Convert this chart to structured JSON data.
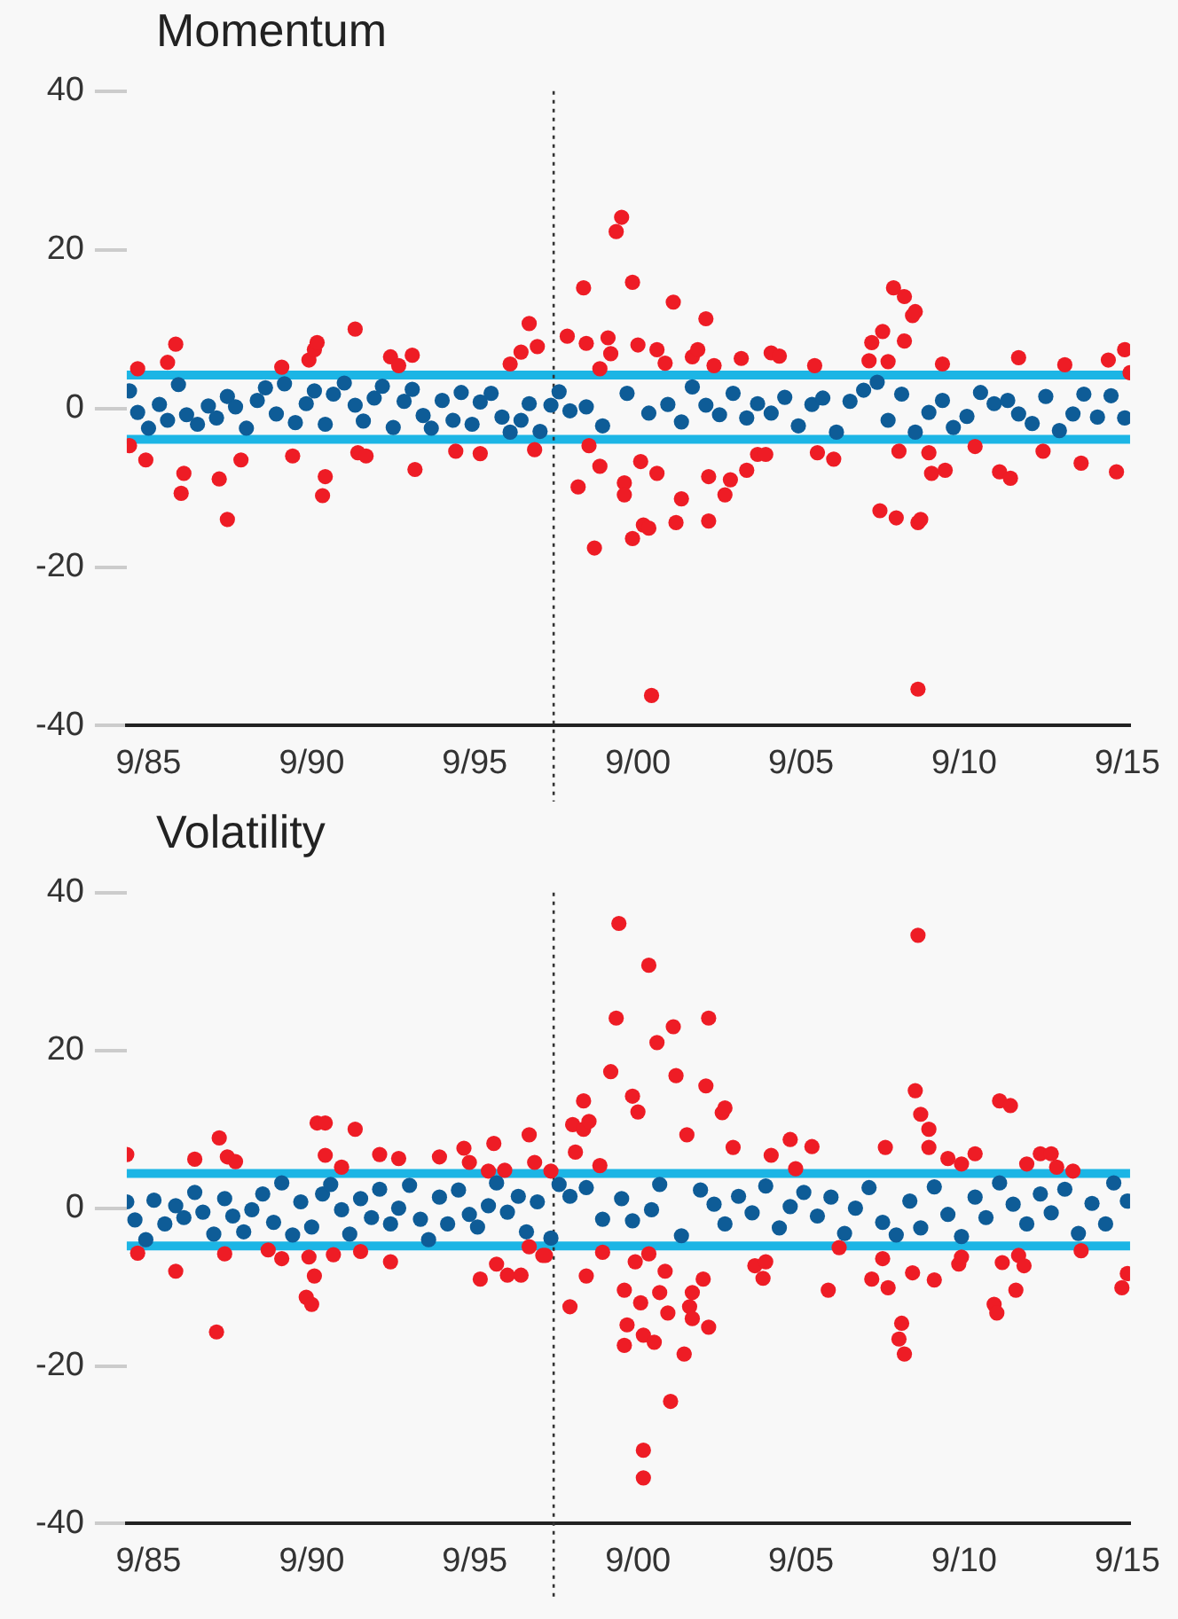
{
  "chart_data": [
    {
      "type": "scatter",
      "title": "Momentum",
      "marker": "circle",
      "legend": false,
      "grid": false,
      "xlim": [
        "1985-01",
        "2015-10"
      ],
      "ylim": [
        -40,
        40
      ],
      "yticks": [
        40,
        20,
        0,
        -20,
        -40
      ],
      "xticks": [
        {
          "value": "1985-09",
          "label": "9/85"
        },
        {
          "value": "1990-09",
          "label": "9/90"
        },
        {
          "value": "1995-09",
          "label": "9/95"
        },
        {
          "value": "2000-09",
          "label": "9/00"
        },
        {
          "value": "2005-09",
          "label": "9/05"
        },
        {
          "value": "2010-09",
          "label": "9/10"
        },
        {
          "value": "2015-09",
          "label": "9/15"
        }
      ],
      "ref_lines": [
        {
          "axis": "y",
          "value": 4.2,
          "color": "#1cb5e5",
          "line_style": "solid"
        },
        {
          "axis": "y",
          "value": -3.9,
          "color": "#1cb5e5",
          "line_style": "solid"
        },
        {
          "axis": "x",
          "value": "1998-02",
          "color": "#333333",
          "line_style": "dotted"
        }
      ],
      "series": [
        {
          "color": "#0e5c97",
          "x": [
            "1985-02",
            "1985-05",
            "1985-09",
            "1986-01",
            "1986-04",
            "1986-08",
            "1986-11",
            "1987-03",
            "1987-07",
            "1987-10",
            "1988-02",
            "1988-05",
            "1988-09",
            "1989-01",
            "1989-04",
            "1989-08",
            "1989-11",
            "1990-03",
            "1990-07",
            "1990-10",
            "1991-02",
            "1991-05",
            "1991-09",
            "1992-01",
            "1992-04",
            "1992-08",
            "1992-11",
            "1993-03",
            "1993-07",
            "1993-10",
            "1994-02",
            "1994-05",
            "1994-09",
            "1995-01",
            "1995-04",
            "1995-08",
            "1995-11",
            "1996-03",
            "1996-07",
            "1996-10",
            "1997-02",
            "1997-05",
            "1997-09",
            "1998-01",
            "1998-04",
            "1998-08",
            "1999-02",
            "1999-08",
            "2000-05",
            "2001-01",
            "2001-08",
            "2002-01",
            "2002-05",
            "2002-10",
            "2003-03",
            "2003-08",
            "2004-01",
            "2004-05",
            "2004-10",
            "2005-03",
            "2005-08",
            "2006-01",
            "2006-05",
            "2006-10",
            "2007-03",
            "2007-08",
            "2008-01",
            "2008-05",
            "2008-10",
            "2009-03",
            "2009-08",
            "2010-01",
            "2010-05",
            "2010-10",
            "2011-03",
            "2011-08",
            "2012-01",
            "2012-05",
            "2012-10",
            "2013-03",
            "2013-08",
            "2014-01",
            "2014-05",
            "2014-10",
            "2015-03",
            "2015-08"
          ],
          "values": [
            2.2,
            -0.5,
            -2.5,
            0.5,
            -1.5,
            3.0,
            -0.8,
            -2.0,
            0.3,
            -1.2,
            1.5,
            0.2,
            -2.5,
            1.0,
            2.6,
            -0.7,
            3.1,
            -1.8,
            0.6,
            2.2,
            -2.0,
            1.8,
            3.2,
            0.4,
            -1.6,
            1.3,
            2.8,
            -2.4,
            0.9,
            2.4,
            -0.9,
            -2.5,
            1.0,
            -1.5,
            2.0,
            -2.0,
            0.8,
            1.9,
            -1.1,
            -3.0,
            -1.5,
            0.6,
            -2.9,
            0.4,
            2.1,
            -0.3,
            0.2,
            -2.2,
            1.9,
            -0.6,
            0.5,
            -1.7,
            2.7,
            0.4,
            -0.8,
            1.9,
            -1.2,
            0.6,
            -0.6,
            1.4,
            -2.2,
            0.5,
            1.3,
            -3.0,
            0.9,
            2.3,
            3.3,
            -1.5,
            1.8,
            -3.0,
            -0.5,
            1.0,
            -2.4,
            -1.0,
            2.0,
            0.6,
            1.0,
            -0.7,
            -1.9,
            1.5,
            -2.8,
            -0.7,
            1.8,
            -1.1,
            1.6,
            -1.2
          ]
        },
        {
          "color": "#ee1c25",
          "x": [
            "1985-02",
            "1985-08",
            "1985-05",
            "1986-04",
            "1986-07",
            "1986-10",
            "1986-09",
            "1987-11",
            "1988-02",
            "1988-07",
            "1989-10",
            "1990-02",
            "1990-08",
            "1990-10",
            "1990-11",
            "1991-01",
            "1991-02",
            "1992-01",
            "1992-02",
            "1992-05",
            "1993-02",
            "1993-05",
            "1993-10",
            "1993-11",
            "1995-02",
            "1995-11",
            "1996-10",
            "1997-02",
            "1997-05",
            "1997-08",
            "1997-07",
            "1998-07",
            "1999-01",
            "1999-02",
            "1999-10",
            "1999-11",
            "1999-07",
            "1999-03",
            "1999-07",
            "1998-11",
            "1999-05",
            "2000-03",
            "2000-01",
            "2000-07",
            "2001-10",
            "2002-10",
            "2000-09",
            "2001-04",
            "2001-07",
            "2002-05",
            "2002-07",
            "2003-01",
            "2003-11",
            "2004-10",
            "2005-01",
            "2006-02",
            "2007-10",
            "2007-11",
            "2008-03",
            "2008-07",
            "2008-11",
            "2009-02",
            "2009-03",
            "2008-11",
            "2008-05",
            "2010-01",
            "2012-05",
            "2013-10",
            "2015-02",
            "2015-08",
            "2015-10",
            "2000-04",
            "2000-04",
            "2000-10",
            "2000-11",
            "2001-01",
            "2000-07",
            "2001-02",
            "2001-04",
            "2002-01",
            "2001-11",
            "2002-11",
            "2002-11",
            "2003-05",
            "2003-07",
            "2004-01",
            "2004-05",
            "2004-08",
            "2006-03",
            "2006-09",
            "2008-02",
            "2008-08",
            "2009-04",
            "2009-05",
            "2009-04",
            "2008-09",
            "2009-08",
            "2009-09",
            "2010-02",
            "2011-10",
            "2012-02",
            "2011-01",
            "2013-02",
            "2014-04",
            "2015-05"
          ],
          "values": [
            -4.7,
            -6.5,
            5,
            5.8,
            8.1,
            -8.2,
            -10.7,
            -8.9,
            -14,
            -6.5,
            5.2,
            -6,
            6.1,
            7.4,
            8.3,
            -11,
            -8.6,
            10,
            -5.6,
            -6,
            6.5,
            5.4,
            6.7,
            -7.7,
            -5.4,
            -5.7,
            5.6,
            7.1,
            10.7,
            7.8,
            -5.2,
            9.1,
            15.2,
            8.2,
            8.9,
            6.9,
            5,
            -4.7,
            -7.3,
            -9.9,
            -17.6,
            24.1,
            22.3,
            15.9,
            13.4,
            11.3,
            8,
            7.4,
            5.7,
            6.5,
            7.4,
            5.4,
            6.3,
            7,
            6.6,
            5.4,
            6,
            8.3,
            9.7,
            15.2,
            14.1,
            11.7,
            12.2,
            8.5,
            5.9,
            5.6,
            6.4,
            5.5,
            6.1,
            7.4,
            4.5,
            -9.4,
            -10.9,
            -6.7,
            -14.7,
            -15.1,
            -16.4,
            -36.2,
            -8.2,
            -11.4,
            -14.4,
            -8.6,
            -14.2,
            -10.9,
            -9,
            -7.8,
            -5.8,
            -5.8,
            -5.6,
            -6.4,
            -12.9,
            -13.8,
            -14.4,
            -14,
            -35.4,
            -5.4,
            -5.6,
            -8.2,
            -7.8,
            -8,
            -8.8,
            -4.8,
            -5.4,
            -6.9,
            -8
          ]
        }
      ]
    },
    {
      "type": "scatter",
      "title": "Volatility",
      "marker": "circle",
      "legend": false,
      "grid": false,
      "xlim": [
        "1985-01",
        "2015-10"
      ],
      "ylim": [
        -40,
        40
      ],
      "yticks": [
        40,
        20,
        0,
        -20,
        -40
      ],
      "xticks": [
        {
          "value": "1985-09",
          "label": "9/85"
        },
        {
          "value": "1990-09",
          "label": "9/90"
        },
        {
          "value": "1995-09",
          "label": "9/95"
        },
        {
          "value": "2000-09",
          "label": "9/00"
        },
        {
          "value": "2005-09",
          "label": "9/05"
        },
        {
          "value": "2010-09",
          "label": "9/10"
        },
        {
          "value": "2015-09",
          "label": "9/15"
        }
      ],
      "ref_lines": [
        {
          "axis": "y",
          "value": 4.4,
          "color": "#1cb5e5",
          "line_style": "solid"
        },
        {
          "axis": "y",
          "value": -4.8,
          "color": "#1cb5e5",
          "line_style": "solid"
        },
        {
          "axis": "x",
          "value": "1998-02",
          "color": "#333333",
          "line_style": "dotted"
        }
      ],
      "series": [
        {
          "color": "#0e5c97",
          "x": [
            "1985-01",
            "1985-04",
            "1985-08",
            "1985-11",
            "1986-03",
            "1986-07",
            "1986-10",
            "1987-02",
            "1987-05",
            "1987-09",
            "1988-01",
            "1988-04",
            "1988-08",
            "1988-11",
            "1989-03",
            "1989-07",
            "1989-10",
            "1990-02",
            "1990-05",
            "1990-09",
            "1991-01",
            "1991-04",
            "1991-08",
            "1991-11",
            "1992-03",
            "1992-07",
            "1992-10",
            "1993-02",
            "1993-05",
            "1993-09",
            "1994-01",
            "1994-04",
            "1994-08",
            "1994-11",
            "1995-03",
            "1995-07",
            "1995-10",
            "1996-02",
            "1996-05",
            "1996-09",
            "1997-01",
            "1997-04",
            "1997-08",
            "1998-01",
            "1998-04",
            "1998-08",
            "1999-02",
            "1999-08",
            "2000-03",
            "2000-07",
            "2001-02",
            "2001-05",
            "2002-01",
            "2002-08",
            "2003-01",
            "2003-05",
            "2003-10",
            "2004-03",
            "2004-08",
            "2005-01",
            "2005-05",
            "2005-10",
            "2006-03",
            "2006-08",
            "2007-01",
            "2007-05",
            "2007-10",
            "2008-03",
            "2008-08",
            "2009-01",
            "2009-05",
            "2009-10",
            "2010-03",
            "2010-08",
            "2011-01",
            "2011-05",
            "2011-10",
            "2012-03",
            "2012-08",
            "2013-01",
            "2013-05",
            "2013-10",
            "2014-03",
            "2014-08",
            "2015-01",
            "2015-04",
            "2015-09"
          ],
          "values": [
            0.8,
            -1.5,
            -4.0,
            1.0,
            -2.0,
            0.3,
            -1.2,
            2.0,
            -0.5,
            -3.3,
            1.2,
            -1.0,
            -3.0,
            -0.2,
            1.8,
            -1.8,
            3.2,
            -3.4,
            0.8,
            -2.4,
            1.8,
            3.0,
            -0.2,
            -3.3,
            1.2,
            -1.2,
            2.4,
            -2.0,
            0.0,
            2.9,
            -1.4,
            -4.0,
            1.4,
            -2.0,
            2.3,
            -0.8,
            -2.4,
            0.3,
            3.2,
            -0.5,
            1.5,
            -3.0,
            0.8,
            -3.8,
            3.0,
            1.5,
            2.6,
            -1.4,
            1.2,
            -1.6,
            -0.2,
            3.0,
            -3.5,
            2.3,
            0.5,
            -2.0,
            1.5,
            -0.6,
            2.8,
            -2.5,
            0.2,
            2.0,
            -1.0,
            1.4,
            -3.2,
            0.0,
            2.6,
            -1.8,
            -3.4,
            0.9,
            -2.5,
            2.7,
            -0.8,
            -3.6,
            1.4,
            -1.2,
            3.2,
            0.5,
            -2.0,
            1.8,
            -0.6,
            2.4,
            -3.2,
            0.6,
            -2.0,
            3.2,
            0.9
          ]
        },
        {
          "color": "#ee1c25",
          "x": [
            "1985-01",
            "1985-05",
            "1986-07",
            "1987-02",
            "1987-11",
            "1988-02",
            "1988-05",
            "1987-10",
            "1988-01",
            "1989-05",
            "1989-10",
            "1990-11",
            "1991-02",
            "1991-02",
            "1990-08",
            "1990-10",
            "1990-07",
            "1990-09",
            "1992-01",
            "1991-08",
            "1991-05",
            "1992-03",
            "1992-10",
            "1993-05",
            "1993-02",
            "1994-08",
            "1995-05",
            "1995-07",
            "1996-04",
            "1996-02",
            "1996-08",
            "1997-05",
            "1997-07",
            "1995-11",
            "1996-05",
            "1996-09",
            "1997-02",
            "1997-05",
            "1997-10",
            "1998-01",
            "1997-11",
            "1998-08",
            "1998-09",
            "1999-01",
            "1999-03",
            "1999-01",
            "1998-10",
            "1999-07",
            "1999-02",
            "1999-08",
            "1999-11",
            "2000-01",
            "2000-02",
            "2000-07",
            "2000-09",
            "2001-01",
            "2001-04",
            "2001-10",
            "2001-11",
            "2002-11",
            "2002-10",
            "2003-04",
            "2003-05",
            "2002-03",
            "2003-08",
            "2004-10",
            "2005-05",
            "2006-01",
            "2005-07",
            "2008-04",
            "2009-03",
            "2009-05",
            "2009-08",
            "2009-08",
            "2009-04",
            "2010-03",
            "2010-08",
            "2011-01",
            "2011-10",
            "2012-02",
            "2012-08",
            "2013-01",
            "2013-05",
            "2013-07",
            "2014-01",
            "2000-04",
            "2000-05",
            "2000-04",
            "2000-08",
            "2000-10",
            "2000-11",
            "2000-11",
            "2000-11",
            "2001-01",
            "2001-03",
            "2001-05",
            "2001-07",
            "2001-08",
            "2001-09",
            "2002-02",
            "2002-04",
            "2002-05",
            "2002-05",
            "2002-09",
            "2002-11",
            "2004-04",
            "2004-07",
            "2004-08",
            "2006-07",
            "2006-11",
            "2007-11",
            "2008-03",
            "2008-05",
            "2008-10",
            "2008-09",
            "2008-11",
            "2009-02",
            "2009-10",
            "2010-07",
            "2010-08",
            "2011-08",
            "2011-09",
            "2011-11",
            "2012-05",
            "2012-07",
            "2012-04",
            "2014-04",
            "2015-07",
            "2015-09"
          ],
          "values": [
            6.8,
            -5.7,
            -8,
            6.2,
            8.9,
            6.5,
            5.9,
            -15.7,
            -5.8,
            -5.3,
            -6.4,
            10.8,
            10.8,
            6.7,
            -6.2,
            -8.6,
            -11.3,
            -12.2,
            10,
            5.2,
            -5.9,
            -5.5,
            6.8,
            6.3,
            -6.8,
            6.5,
            7.6,
            5.8,
            8.2,
            4.7,
            4.8,
            9.3,
            5.8,
            -9,
            -7.1,
            -8.5,
            -8.5,
            -4.9,
            -6,
            4.7,
            -6,
            -12.5,
            10.6,
            10,
            11,
            13.6,
            7.1,
            5.4,
            -8.6,
            -5.6,
            17.3,
            24.1,
            36.1,
            14.2,
            12.2,
            30.8,
            21,
            23,
            16.8,
            24.1,
            15.5,
            12.1,
            12.7,
            9.3,
            7.7,
            6.7,
            8.7,
            7.8,
            5,
            7.7,
            14.9,
            11.9,
            10,
            7.7,
            34.6,
            6.3,
            5.6,
            6.9,
            13.6,
            13,
            5.6,
            6.9,
            6.9,
            5.2,
            4.7,
            -10.4,
            -14.8,
            -17.4,
            -6.8,
            -12,
            -16.1,
            -30.7,
            -34.2,
            -5.8,
            -17,
            -10.7,
            -8,
            -13.3,
            -24.5,
            -18.5,
            -12.5,
            -10.7,
            -14,
            -9,
            -15.1,
            -7.3,
            -8.9,
            -6.8,
            -10.4,
            -5,
            -9,
            -6.4,
            -10.1,
            -14.6,
            -16.6,
            -18.5,
            -8.2,
            -9.1,
            -7.1,
            -6.2,
            -12.2,
            -13.3,
            -6.9,
            -6,
            -7.3,
            -10.4,
            -5.4,
            -10.1,
            -8.3
          ]
        }
      ]
    }
  ]
}
